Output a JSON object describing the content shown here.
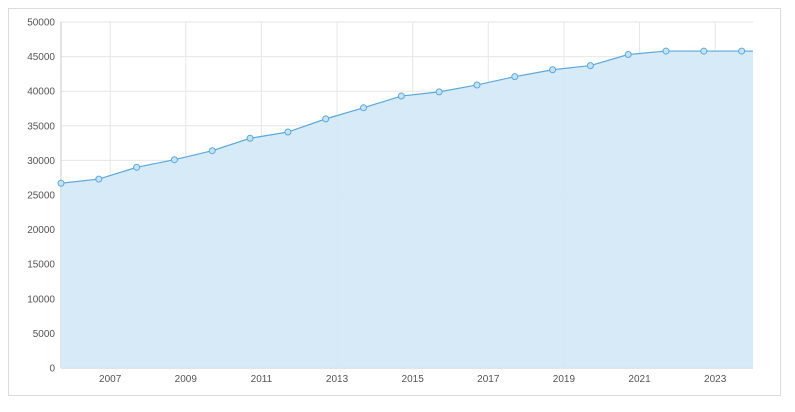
{
  "chart_data": {
    "type": "area",
    "title": "",
    "xlabel": "",
    "ylabel": "",
    "ylim": [
      0,
      50000
    ],
    "xlim": [
      2005.7,
      2024.0
    ],
    "yticks": [
      0,
      5000,
      10000,
      15000,
      20000,
      25000,
      30000,
      35000,
      40000,
      45000,
      50000
    ],
    "xticks": [
      2007,
      2009,
      2011,
      2013,
      2015,
      2017,
      2019,
      2021,
      2023
    ],
    "grid": true,
    "legend": "none",
    "colors": {
      "line": "#5aa9de",
      "fill": "#d4e9f7",
      "marker_stroke": "#5aa9de"
    },
    "series": [
      {
        "x": [
          2005.7,
          2006.7,
          2007.7,
          2008.7,
          2009.7,
          2010.7,
          2011.7,
          2012.7,
          2013.7,
          2014.7,
          2015.7,
          2016.7,
          2017.7,
          2018.7,
          2019.7,
          2020.7,
          2021.7,
          2022.7,
          2023.7
        ],
        "values": [
          26700,
          27300,
          29000,
          30100,
          31400,
          33200,
          34100,
          36000,
          37600,
          39300,
          39900,
          40900,
          42100,
          43100,
          43700,
          45300,
          45800,
          45800,
          45800
        ]
      }
    ]
  }
}
